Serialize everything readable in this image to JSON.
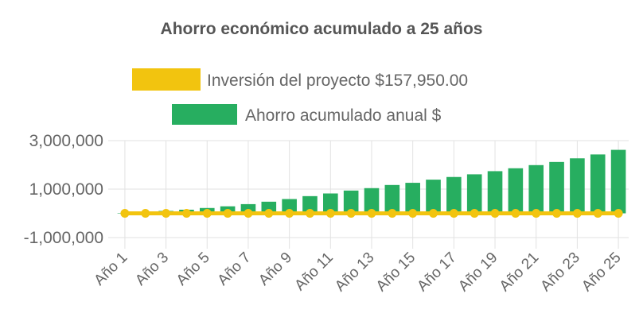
{
  "chart_data": {
    "type": "bar",
    "title": "Ahorro económico acumulado a 25 años",
    "categories": [
      "Año 1",
      "Año 2",
      "Año 3",
      "Año 4",
      "Año 5",
      "Año 6",
      "Año 7",
      "Año 8",
      "Año 9",
      "Año 10",
      "Año 11",
      "Año 12",
      "Año 13",
      "Año 14",
      "Año 15",
      "Año 16",
      "Año 17",
      "Año 18",
      "Año 19",
      "Año 20",
      "Año 21",
      "Año 22",
      "Año 23",
      "Año 24",
      "Año 25"
    ],
    "x_tick_labels": [
      "Año 1",
      "Año 3",
      "Año 5",
      "Año 7",
      "Año 9",
      "Año 11",
      "Año 13",
      "Año 15",
      "Año 17",
      "Año 19",
      "Año 21",
      "Año 23",
      "Año 25"
    ],
    "y_tick_labels": [
      "3,000,000",
      "1,000,000",
      "-1,000,000"
    ],
    "y_tick_values": [
      3000000,
      1000000,
      -1000000
    ],
    "ylim": [
      -1000000,
      3000000
    ],
    "grid": true,
    "legend_position": "top",
    "series": [
      {
        "name": "Inversión del proyecto $157,950.00",
        "kind": "line",
        "color": "#f2c40f",
        "values": [
          0,
          0,
          0,
          0,
          0,
          0,
          0,
          0,
          0,
          0,
          0,
          0,
          0,
          0,
          0,
          0,
          0,
          0,
          0,
          0,
          0,
          0,
          0,
          0,
          0
        ]
      },
      {
        "name": "Ahorro acumulado anual $",
        "kind": "bar",
        "color": "#27ae60",
        "values": [
          5000,
          50000,
          100000,
          150000,
          220000,
          290000,
          380000,
          480000,
          590000,
          710000,
          820000,
          940000,
          1040000,
          1170000,
          1260000,
          1390000,
          1500000,
          1610000,
          1740000,
          1860000,
          1990000,
          2120000,
          2270000,
          2430000,
          2620000
        ]
      }
    ]
  }
}
